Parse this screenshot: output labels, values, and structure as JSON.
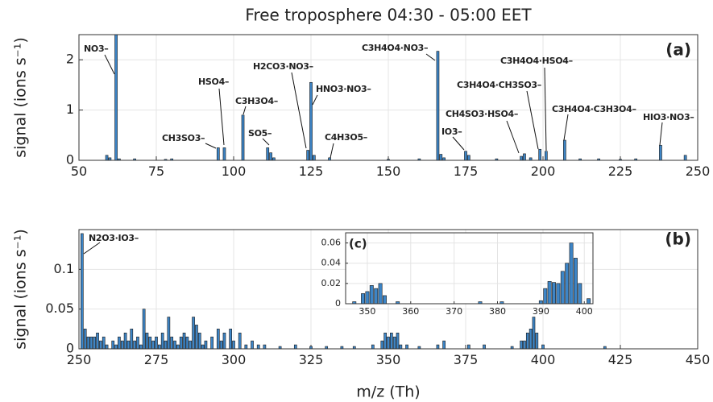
{
  "chart_data": [
    {
      "type": "bar",
      "title": "Free troposphere 04:30 - 05:00 EET",
      "ylabel": "signal (ions s⁻¹)",
      "panel_label": "(a)",
      "color": "#3d85c6",
      "grid": true,
      "xlim": [
        50,
        250
      ],
      "xticks": [
        50,
        75,
        100,
        125,
        150,
        175,
        200,
        225,
        250
      ],
      "ylim": [
        0,
        2.5
      ],
      "yticks": [
        0,
        1,
        2
      ],
      "x": [
        59,
        60,
        62,
        63,
        68,
        78,
        80,
        95,
        97,
        103,
        111,
        112,
        113,
        124,
        125,
        126,
        131,
        150,
        160,
        166,
        167,
        168,
        175,
        176,
        185,
        193,
        194,
        196,
        199,
        201,
        207,
        212,
        218,
        225,
        230,
        238,
        246
      ],
      "values": [
        0.1,
        0.05,
        2.5,
        0.03,
        0.03,
        0.02,
        0.03,
        0.25,
        0.25,
        0.9,
        0.25,
        0.15,
        0.05,
        0.2,
        1.55,
        0.1,
        0.05,
        0.02,
        0.03,
        2.17,
        0.12,
        0.05,
        0.18,
        0.1,
        0.03,
        0.08,
        0.13,
        0.05,
        0.22,
        0.18,
        0.4,
        0.03,
        0.03,
        0.02,
        0.03,
        0.3,
        0.1
      ],
      "annotations": [
        "NO3–",
        "CH3SO3–",
        "HSO4–",
        "C3H3O4–",
        "SO5–",
        "H2CO3·NO3–",
        "HNO3·NO3–",
        "C4H3O5–",
        "C3H4O4·NO3–",
        "IO3–",
        "CH4SO3·HSO4–",
        "C3H4O4·CH3SO3–",
        "C3H4O4·HSO4–",
        "C3H4O4·C3H3O4–",
        "HIO3·NO3–"
      ]
    },
    {
      "type": "bar",
      "ylabel": "signal (ions s⁻¹)",
      "xlabel": "m/z (Th)",
      "panel_label": "(b)",
      "color": "#3d85c6",
      "grid": true,
      "xlim": [
        250,
        450
      ],
      "xticks": [
        250,
        275,
        300,
        325,
        350,
        375,
        400,
        425,
        450
      ],
      "ylim": [
        0,
        0.15
      ],
      "yticks": [
        0,
        0.05,
        0.1
      ],
      "x": [
        251,
        252,
        253,
        254,
        255,
        256,
        257,
        258,
        259,
        261,
        262,
        263,
        264,
        265,
        266,
        267,
        268,
        269,
        270,
        271,
        272,
        273,
        274,
        275,
        276,
        277,
        278,
        279,
        280,
        281,
        282,
        283,
        284,
        285,
        286,
        287,
        288,
        289,
        290,
        291,
        293,
        295,
        296,
        297,
        299,
        300,
        302,
        304,
        306,
        308,
        310,
        315,
        320,
        325,
        330,
        335,
        339,
        345,
        348,
        349,
        350,
        351,
        352,
        353,
        354,
        356,
        360,
        366,
        368,
        376,
        381,
        390,
        393,
        394,
        395,
        396,
        397,
        398,
        400,
        420
      ],
      "values": [
        0.145,
        0.025,
        0.015,
        0.015,
        0.015,
        0.02,
        0.01,
        0.015,
        0.005,
        0.01,
        0.005,
        0.015,
        0.01,
        0.02,
        0.01,
        0.025,
        0.01,
        0.015,
        0.005,
        0.05,
        0.02,
        0.015,
        0.01,
        0.015,
        0.005,
        0.02,
        0.01,
        0.04,
        0.015,
        0.01,
        0.005,
        0.015,
        0.02,
        0.015,
        0.01,
        0.04,
        0.03,
        0.02,
        0.005,
        0.01,
        0.015,
        0.025,
        0.01,
        0.02,
        0.025,
        0.01,
        0.02,
        0.005,
        0.01,
        0.005,
        0.005,
        0.003,
        0.005,
        0.003,
        0.003,
        0.003,
        0.003,
        0.005,
        0.01,
        0.02,
        0.015,
        0.02,
        0.015,
        0.02,
        0.005,
        0.005,
        0.003,
        0.005,
        0.01,
        0.005,
        0.005,
        0.003,
        0.01,
        0.01,
        0.02,
        0.025,
        0.04,
        0.02,
        0.005,
        0.003
      ],
      "annotations": [
        "N2O3·IO3–"
      ]
    },
    {
      "type": "bar",
      "panel_label": "(c)",
      "color": "#3d85c6",
      "grid": true,
      "xlim": [
        345,
        402
      ],
      "xticks": [
        350,
        360,
        370,
        380,
        390,
        400
      ],
      "ylim": [
        0,
        0.07
      ],
      "yticks": [
        0,
        0.02,
        0.04,
        0.06
      ],
      "x": [
        347,
        349,
        350,
        351,
        352,
        353,
        354,
        357,
        376,
        381,
        390,
        391,
        392,
        393,
        394,
        395,
        396,
        397,
        398,
        399,
        401
      ],
      "values": [
        0.002,
        0.01,
        0.012,
        0.018,
        0.015,
        0.02,
        0.008,
        0.002,
        0.002,
        0.002,
        0.003,
        0.015,
        0.022,
        0.021,
        0.02,
        0.032,
        0.04,
        0.06,
        0.045,
        0.02,
        0.005
      ],
      "annotations": []
    }
  ]
}
